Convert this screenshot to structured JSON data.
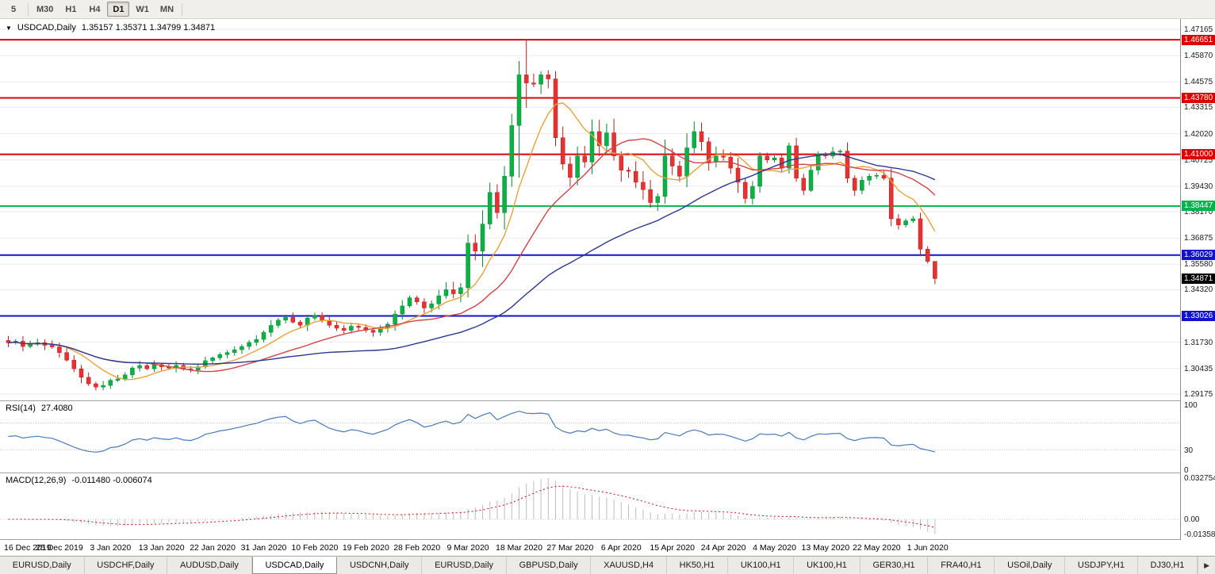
{
  "toolbar": {
    "timeframes": [
      "5",
      "M30",
      "H1",
      "H4",
      "D1",
      "W1",
      "MN"
    ],
    "active": "D1"
  },
  "chart": {
    "title": "USDCAD,Daily",
    "ohlc": "1.35157 1.35371 1.34799 1.34871",
    "dropdown_icon": "▼",
    "price_ticks": [
      "1.47165",
      "1.45870",
      "1.44575",
      "1.43315",
      "1.42020",
      "1.40725",
      "1.39430",
      "1.38170",
      "1.36875",
      "1.35580",
      "1.34320",
      "1.33025",
      "1.31730",
      "1.30435",
      "1.29175"
    ],
    "scale": {
      "top_price": 1.47165,
      "bottom_price": 1.29175
    },
    "hlines": [
      {
        "label": "1.46651",
        "value": 1.46651,
        "color": "#dd0000"
      },
      {
        "label": "1.43780",
        "value": 1.4378,
        "color": "#dd0000"
      },
      {
        "label": "1.41000",
        "value": 1.41,
        "color": "#dd0000"
      },
      {
        "label": "1.38447",
        "value": 1.38447,
        "color": "#00b34d"
      },
      {
        "label": "1.36029",
        "value": 1.36029,
        "color": "#1212cc"
      },
      {
        "label": "1.33026",
        "value": 1.33026,
        "color": "#1212cc"
      }
    ],
    "current_price": {
      "label": "1.34871",
      "value": 1.34871,
      "bg": "#000000"
    },
    "colors": {
      "bull": "#0cb145",
      "bull_stroke": "#078a33",
      "bear": "#e63232",
      "bear_stroke": "#bb1d1d",
      "grid": "#ebebeb"
    },
    "mas": [
      {
        "period": 8,
        "color": "#e6a33c"
      },
      {
        "period": 20,
        "color": "#cf4545"
      },
      {
        "period": 45,
        "color": "#2b3a90"
      }
    ],
    "closes": [
      1.317,
      1.3178,
      1.3152,
      1.3163,
      1.3171,
      1.3158,
      1.315,
      1.3122,
      1.3085,
      1.3042,
      1.3,
      1.2968,
      1.2952,
      1.296,
      1.2985,
      1.2992,
      1.3012,
      1.3046,
      1.3058,
      1.3042,
      1.3063,
      1.3052,
      1.3046,
      1.3059,
      1.3041,
      1.3036,
      1.3052,
      1.3082,
      1.3096,
      1.3112,
      1.3122,
      1.3136,
      1.3152,
      1.3172,
      1.3187,
      1.3222,
      1.3256,
      1.3282,
      1.3296,
      1.3272,
      1.3257,
      1.3292,
      1.3306,
      1.3282,
      1.3257,
      1.3242,
      1.3232,
      1.3252,
      1.3246,
      1.3232,
      1.3222,
      1.3242,
      1.3262,
      1.3312,
      1.3352,
      1.3392,
      1.3372,
      1.3342,
      1.3362,
      1.3402,
      1.3432,
      1.3412,
      1.3442,
      1.3662,
      1.3622,
      1.3756,
      1.3912,
      1.3812,
      1.3992,
      1.4242,
      1.4492,
      1.4452,
      1.4446,
      1.4492,
      1.4472,
      1.4182,
      1.4052,
      1.3986,
      1.4092,
      1.4062,
      1.4212,
      1.4142,
      1.4206,
      1.4092,
      1.4022,
      1.4016,
      1.3962,
      1.3926,
      1.3862,
      1.3892,
      1.4092,
      1.4042,
      1.3992,
      1.4132,
      1.4212,
      1.4162,
      1.4062,
      1.4092,
      1.4086,
      1.4032,
      1.3962,
      1.3882,
      1.3942,
      1.4092,
      1.4072,
      1.4082,
      1.4032,
      1.4142,
      1.3982,
      1.3922,
      1.4022,
      1.4102,
      1.4092,
      1.4112,
      1.4116,
      1.3982,
      1.3922,
      1.3972,
      1.3992,
      1.3996,
      1.3982,
      1.3782,
      1.3752,
      1.3772,
      1.3782,
      1.3632,
      1.3572,
      1.34871
    ],
    "wick_overrides": {
      "63": [
        1.3705,
        1.3395
      ],
      "66": [
        1.396,
        1.373
      ],
      "69": [
        1.43,
        1.394
      ],
      "70": [
        1.456,
        1.3985
      ],
      "71": [
        1.4668,
        1.433
      ],
      "75": [
        1.451,
        1.414
      ],
      "127": [
        1.3565,
        1.346
      ]
    }
  },
  "rsi": {
    "label": "RSI(14)",
    "value": "27.4080",
    "period": 14,
    "color": "#4a7ab5",
    "levels": [
      70,
      30
    ],
    "axis": [
      {
        "label": "100",
        "value": 100
      },
      {
        "label": "30",
        "value": 30
      },
      {
        "label": "0",
        "value": 0
      }
    ]
  },
  "macd": {
    "label": "MACD(12,26,9)",
    "values": "-0.011480 -0.006074",
    "fast": 12,
    "slow": 26,
    "signal": 9,
    "hist_color": "#bdbdbd",
    "signal_color": "#cc1111",
    "axis": [
      {
        "label": "0.032754",
        "value": 0.032754
      },
      {
        "label": "0.00",
        "value": 0
      },
      {
        "label": "-0.013586",
        "value": -0.013586
      }
    ]
  },
  "date_axis": {
    "labels": [
      "16 Dec 2019",
      "25 Dec 2019",
      "3 Jan 2020",
      "13 Jan 2020",
      "22 Jan 2020",
      "31 Jan 2020",
      "10 Feb 2020",
      "19 Feb 2020",
      "28 Feb 2020",
      "9 Mar 2020",
      "18 Mar 2020",
      "27 Mar 2020",
      "6 Apr 2020",
      "15 Apr 2020",
      "24 Apr 2020",
      "4 May 2020",
      "13 May 2020",
      "22 May 2020",
      "1 Jun 2020"
    ]
  },
  "tabs": {
    "items": [
      "EURUSD,Daily",
      "USDCHF,Daily",
      "AUDUSD,Daily",
      "USDCAD,Daily",
      "USDCNH,Daily",
      "EURUSD,Daily",
      "GBPUSD,Daily",
      "XAUUSD,H4",
      "HK50,H1",
      "UK100,H1",
      "UK100,H1",
      "GER30,H1",
      "FRA40,H1",
      "USOil,Daily",
      "USDJPY,H1",
      "DJ30,H1"
    ],
    "active_index": 3,
    "scroll_right_icon": "▶"
  }
}
